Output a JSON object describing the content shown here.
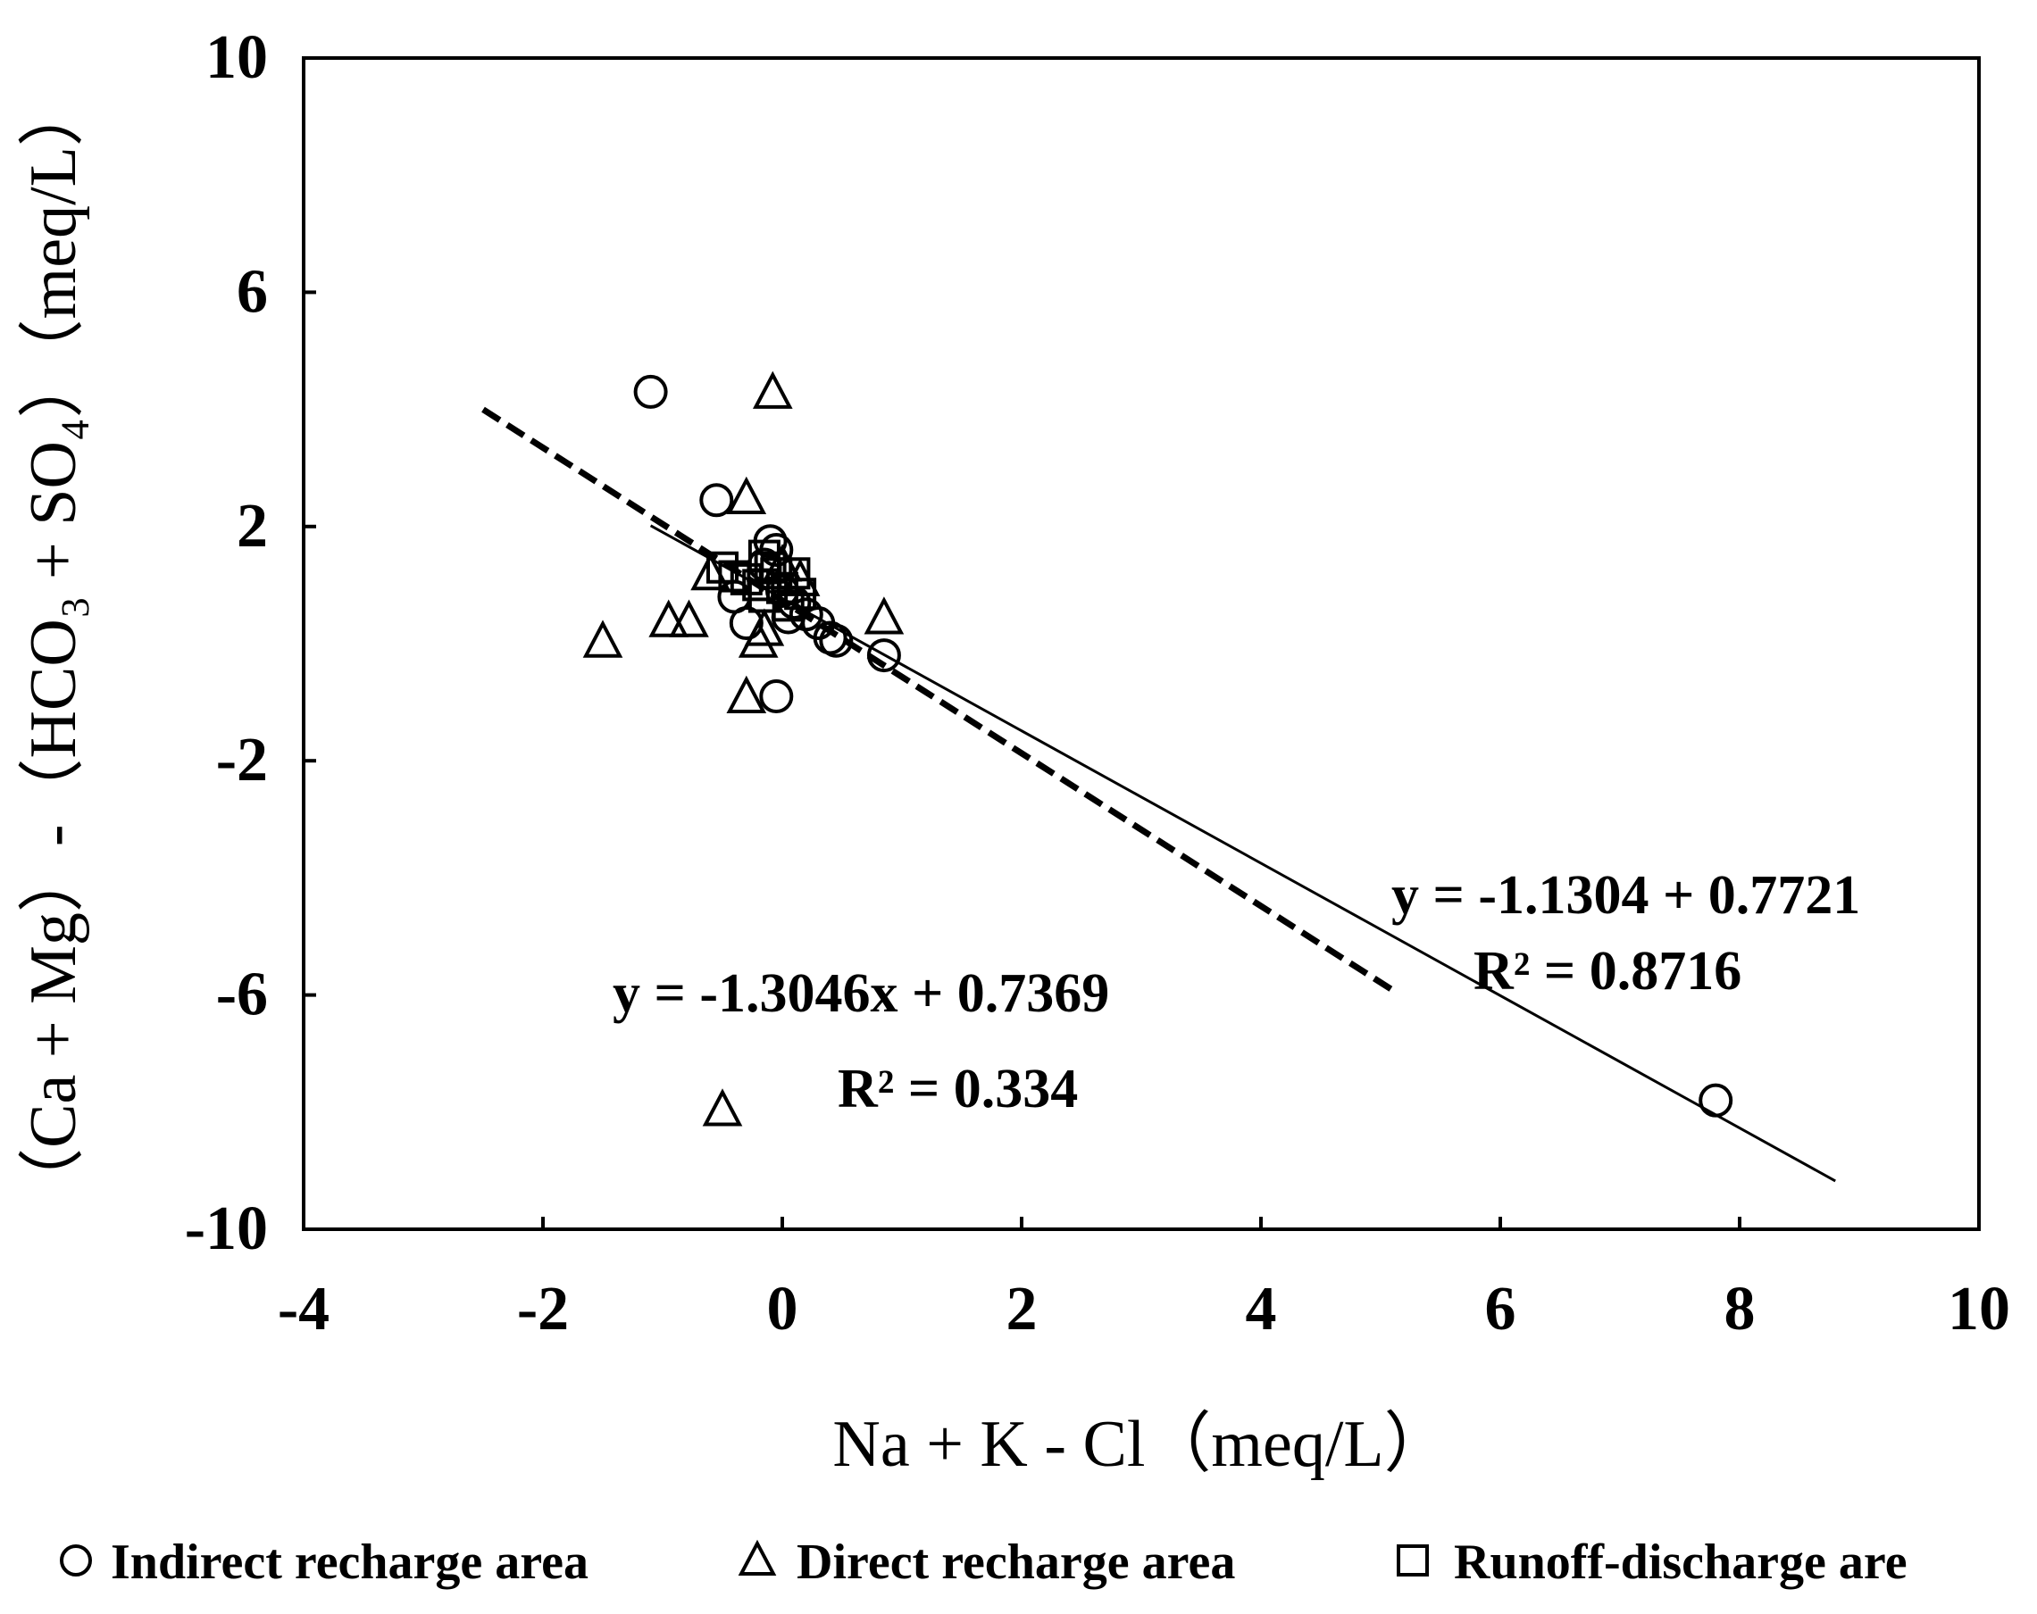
{
  "chart_data": {
    "type": "scatter",
    "xlabel": "Na + K - Cl（meq/L）",
    "ylabel": "（Ca + Mg）-（HCO₃ + SO₄）（meq/L）",
    "xlim": [
      -4,
      10
    ],
    "ylim": [
      -10,
      10
    ],
    "x_ticks": [
      "-4",
      "-2",
      "0",
      "2",
      "4",
      "6",
      "8",
      "10"
    ],
    "y_ticks": [
      "10",
      "6",
      "2",
      "-2",
      "-6",
      "-10"
    ],
    "grid": false,
    "legend_position": "bottom",
    "series": [
      {
        "name": "Indirect recharge area",
        "marker": "circle",
        "points": [
          [
            -1.1,
            4.3
          ],
          [
            -0.55,
            2.45
          ],
          [
            -0.1,
            1.75
          ],
          [
            -0.05,
            1.6
          ],
          [
            -0.15,
            1.35
          ],
          [
            -0.4,
            0.8
          ],
          [
            -0.3,
            0.35
          ],
          [
            0.0,
            0.9
          ],
          [
            0.1,
            0.7
          ],
          [
            0.2,
            0.5
          ],
          [
            0.3,
            0.35
          ],
          [
            0.4,
            0.1
          ],
          [
            0.45,
            0.05
          ],
          [
            0.85,
            -0.2
          ],
          [
            -0.05,
            -0.9
          ],
          [
            0.05,
            0.45
          ],
          [
            7.8,
            -7.8
          ]
        ]
      },
      {
        "name": "Direct recharge area",
        "marker": "triangle",
        "points": [
          [
            -0.08,
            4.3
          ],
          [
            -0.3,
            2.5
          ],
          [
            -1.5,
            0.05
          ],
          [
            -0.95,
            0.4
          ],
          [
            -0.78,
            0.4
          ],
          [
            -0.6,
            1.2
          ],
          [
            -0.2,
            0.05
          ],
          [
            -0.15,
            0.25
          ],
          [
            -0.3,
            -0.9
          ],
          [
            0.0,
            1.35
          ],
          [
            0.15,
            1.1
          ],
          [
            0.85,
            0.45
          ],
          [
            -0.5,
            -7.95
          ]
        ]
      },
      {
        "name": "Runoff-discharge are",
        "marker": "square",
        "points": [
          [
            -0.5,
            1.3
          ],
          [
            -0.4,
            1.15
          ],
          [
            -0.3,
            1.1
          ],
          [
            -0.2,
            1.0
          ],
          [
            -0.15,
            0.8
          ],
          [
            -0.1,
            1.3
          ],
          [
            -0.05,
            1.2
          ],
          [
            0.0,
            0.95
          ],
          [
            0.1,
            1.2
          ],
          [
            0.15,
            0.85
          ],
          [
            0.05,
            0.65
          ],
          [
            -0.15,
            1.5
          ]
        ]
      }
    ],
    "fits": [
      {
        "style": "dashed",
        "x_range": [
          -2.5,
          5.1
        ],
        "slope": -1.3046,
        "intercept": 0.7369
      },
      {
        "style": "solid",
        "x_range": [
          -1.1,
          8.8
        ],
        "slope": -1.1304,
        "intercept": 0.7721
      }
    ],
    "annotations": {
      "dashed_eq": "y = -1.3046x + 0.7369",
      "dashed_r2": "R² = 0.334",
      "solid_eq": "y = -1.1304 + 0.7721",
      "solid_r2": "R² = 0.8716"
    }
  },
  "legend": {
    "items": [
      {
        "icon": "circle-icon",
        "label": "Indirect  recharge  area"
      },
      {
        "icon": "triangle-icon",
        "label": "Direct  recharge area"
      },
      {
        "icon": "square-icon",
        "label": "Runoff-discharge  are"
      }
    ]
  }
}
